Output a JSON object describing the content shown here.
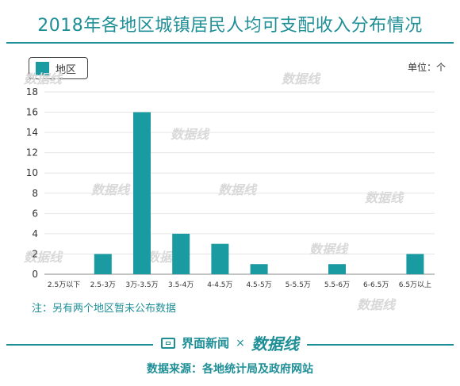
{
  "header": {
    "title": "2018年各地区城镇居民人均可支配收入分布情况"
  },
  "legend": {
    "label": "地区",
    "swatch_color": "#1a9aa1"
  },
  "unit_label": "单位：个",
  "footnote": "注：另有两个地区暂未公布数据",
  "footer": {
    "brand_name": "界面新闻",
    "times_sign": "×",
    "partner_logo": "数据线",
    "source": "数据来源：各地统计局及政府网站"
  },
  "watermark_text": "数据线",
  "chart_data": {
    "type": "bar",
    "categories": [
      "2.5万以下",
      "2.5-3万",
      "3万-3.5万",
      "3.5-4万",
      "4-4.5万",
      "4.5-5万",
      "5-5.5万",
      "5.5-6万",
      "6-6.5万",
      "6.5万以上"
    ],
    "series": [
      {
        "name": "地区",
        "values": [
          0,
          2,
          16,
          4,
          3,
          1,
          0,
          1,
          0,
          2
        ]
      }
    ],
    "ylim": [
      0,
      18
    ],
    "yticks": [
      0,
      2,
      4,
      6,
      8,
      10,
      12,
      14,
      16,
      18
    ],
    "grid": true,
    "bar_color": "#1a9aa1",
    "legend_position": "top-left"
  }
}
